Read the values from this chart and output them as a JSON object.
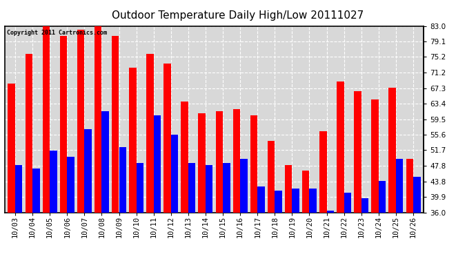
{
  "title": "Outdoor Temperature Daily High/Low 20111027",
  "copyright_text": "Copyright 2011 Cartronics.com",
  "dates": [
    "10/03",
    "10/04",
    "10/05",
    "10/06",
    "10/07",
    "10/08",
    "10/09",
    "10/10",
    "10/11",
    "10/12",
    "10/13",
    "10/14",
    "10/15",
    "10/16",
    "10/17",
    "10/18",
    "10/19",
    "10/20",
    "10/21",
    "10/22",
    "10/23",
    "10/24",
    "10/25",
    "10/26"
  ],
  "highs": [
    68.5,
    76.0,
    83.0,
    80.5,
    82.0,
    83.0,
    80.5,
    72.5,
    76.0,
    73.5,
    64.0,
    61.0,
    61.5,
    62.0,
    60.5,
    54.0,
    48.0,
    46.5,
    56.5,
    69.0,
    66.5,
    64.5,
    67.5,
    49.5
  ],
  "lows": [
    48.0,
    47.0,
    51.5,
    50.0,
    57.0,
    61.5,
    52.5,
    48.5,
    60.5,
    55.5,
    48.5,
    48.0,
    48.5,
    49.5,
    42.5,
    41.5,
    42.0,
    42.0,
    36.5,
    41.0,
    39.5,
    44.0,
    49.5,
    45.0
  ],
  "ylim": [
    36.0,
    83.0
  ],
  "yticks": [
    36.0,
    39.9,
    43.8,
    47.8,
    51.7,
    55.6,
    59.5,
    63.4,
    67.3,
    71.2,
    75.2,
    79.1,
    83.0
  ],
  "high_color": "#ff0000",
  "low_color": "#0000ff",
  "background_color": "#ffffff",
  "plot_bg_color": "#d8d8d8",
  "grid_color": "#ffffff",
  "title_fontsize": 11,
  "tick_fontsize": 7.5,
  "bar_width": 0.42,
  "ymin": 36.0
}
